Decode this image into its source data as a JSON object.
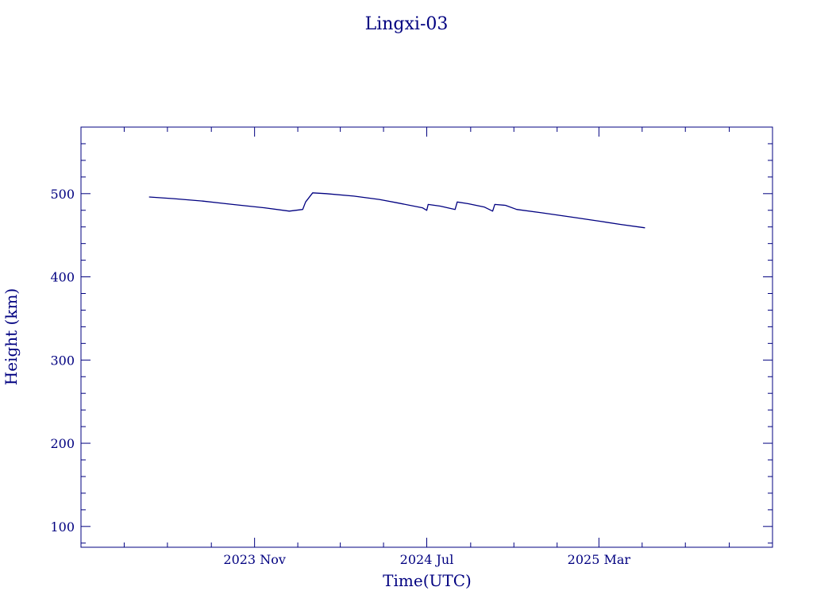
{
  "chart_data": {
    "type": "line",
    "title": "Lingxi-03",
    "xlabel": "Time(UTC)",
    "ylabel": "Height (km)",
    "x_tick_labels": [
      "2023 Nov",
      "2024 Jul",
      "2025 Mar"
    ],
    "x_tick_dates": [
      "2023-11-01",
      "2024-07-01",
      "2025-03-01"
    ],
    "xlim": [
      "2023-03-01",
      "2025-11-01"
    ],
    "ylim": [
      75,
      580
    ],
    "y_ticks": [
      100,
      200,
      300,
      400,
      500
    ],
    "grid": false,
    "color": "#000080",
    "series": [
      {
        "x": [
          "2023-06-05",
          "2023-07-10",
          "2023-08-20",
          "2023-10-01",
          "2023-11-15",
          "2023-12-20",
          "2024-01-08",
          "2024-01-12",
          "2024-01-22",
          "2024-02-10",
          "2024-03-20",
          "2024-04-25",
          "2024-05-20",
          "2024-06-25",
          "2024-07-01",
          "2024-07-03",
          "2024-07-20",
          "2024-08-10",
          "2024-08-13",
          "2024-08-28",
          "2024-09-20",
          "2024-10-02",
          "2024-10-05",
          "2024-10-20",
          "2024-11-05",
          "2024-12-10",
          "2025-01-20",
          "2025-03-01",
          "2025-04-01",
          "2025-05-05"
        ],
        "y": [
          496,
          494,
          491,
          487,
          483,
          479,
          481,
          490,
          501,
          500,
          497,
          493,
          489,
          483,
          480,
          487,
          485,
          481,
          490,
          488,
          484,
          479,
          487,
          486,
          481,
          477,
          472,
          467,
          463,
          459
        ]
      }
    ]
  }
}
